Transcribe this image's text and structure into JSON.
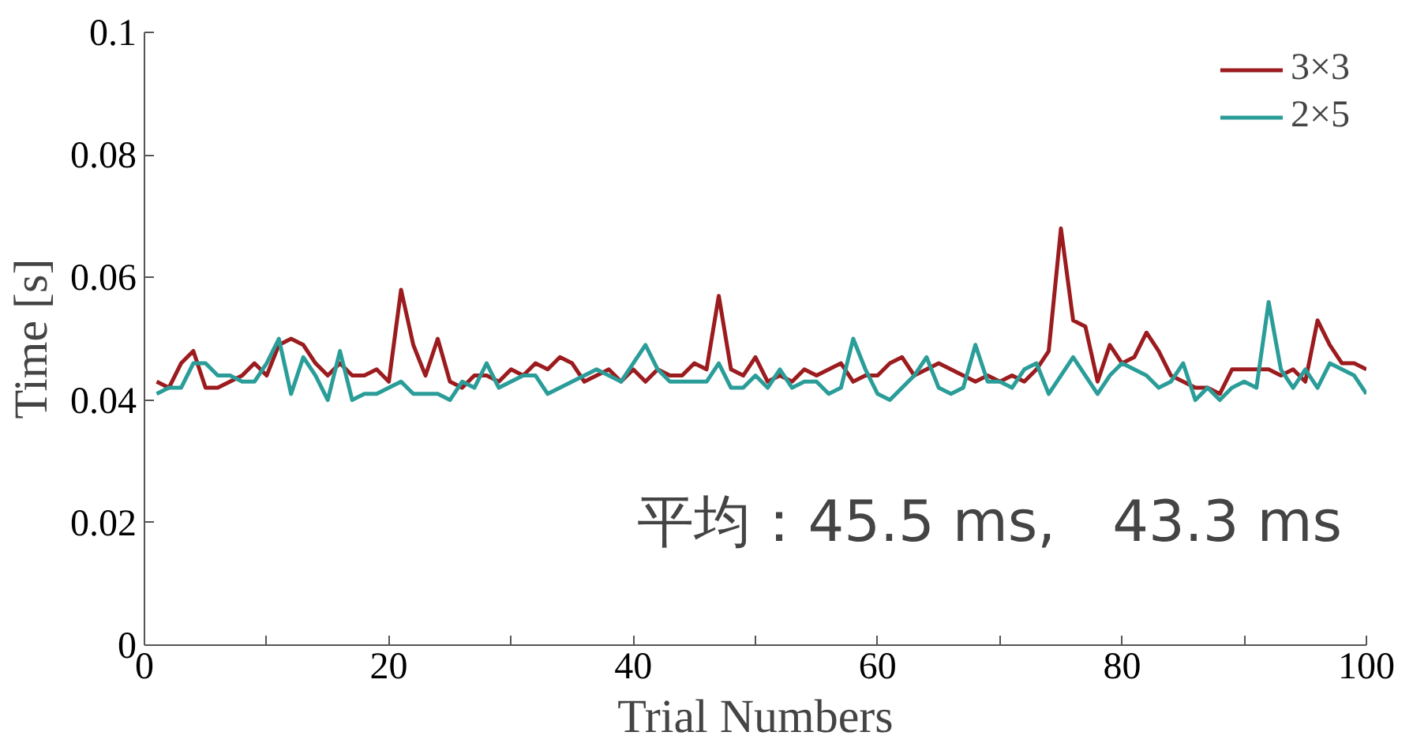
{
  "chart_data": {
    "type": "line",
    "xlabel": "Trial Numbers",
    "ylabel": "Time [s]",
    "x": [
      1,
      2,
      3,
      4,
      5,
      6,
      7,
      8,
      9,
      10,
      11,
      12,
      13,
      14,
      15,
      16,
      17,
      18,
      19,
      20,
      21,
      22,
      23,
      24,
      25,
      26,
      27,
      28,
      29,
      30,
      31,
      32,
      33,
      34,
      35,
      36,
      37,
      38,
      39,
      40,
      41,
      42,
      43,
      44,
      45,
      46,
      47,
      48,
      49,
      50,
      51,
      52,
      53,
      54,
      55,
      56,
      57,
      58,
      59,
      60,
      61,
      62,
      63,
      64,
      65,
      66,
      67,
      68,
      69,
      70,
      71,
      72,
      73,
      74,
      75,
      76,
      77,
      78,
      79,
      80,
      81,
      82,
      83,
      84,
      85,
      86,
      87,
      88,
      89,
      90,
      91,
      92,
      93,
      94,
      95,
      96,
      97,
      98,
      99,
      100
    ],
    "series": [
      {
        "name": "3×3",
        "color": "#9b1b1e",
        "values": [
          0.043,
          0.042,
          0.046,
          0.048,
          0.042,
          0.042,
          0.043,
          0.044,
          0.046,
          0.044,
          0.049,
          0.05,
          0.049,
          0.046,
          0.044,
          0.046,
          0.044,
          0.044,
          0.045,
          0.043,
          0.058,
          0.049,
          0.044,
          0.05,
          0.043,
          0.042,
          0.044,
          0.044,
          0.043,
          0.045,
          0.044,
          0.046,
          0.045,
          0.047,
          0.046,
          0.043,
          0.044,
          0.045,
          0.043,
          0.045,
          0.043,
          0.045,
          0.044,
          0.044,
          0.046,
          0.045,
          0.057,
          0.045,
          0.044,
          0.047,
          0.043,
          0.044,
          0.043,
          0.045,
          0.044,
          0.045,
          0.046,
          0.043,
          0.044,
          0.044,
          0.046,
          0.047,
          0.044,
          0.045,
          0.046,
          0.045,
          0.044,
          0.043,
          0.044,
          0.043,
          0.044,
          0.043,
          0.045,
          0.048,
          0.068,
          0.053,
          0.052,
          0.043,
          0.049,
          0.046,
          0.047,
          0.051,
          0.048,
          0.044,
          0.043,
          0.042,
          0.042,
          0.041,
          0.045,
          0.045,
          0.045,
          0.045,
          0.044,
          0.045,
          0.043,
          0.053,
          0.049,
          0.046,
          0.046,
          0.045
        ]
      },
      {
        "name": "2×5",
        "color": "#2a9d99",
        "values": [
          0.041,
          0.042,
          0.042,
          0.046,
          0.046,
          0.044,
          0.044,
          0.043,
          0.043,
          0.046,
          0.05,
          0.041,
          0.047,
          0.044,
          0.04,
          0.048,
          0.04,
          0.041,
          0.041,
          0.042,
          0.043,
          0.041,
          0.041,
          0.041,
          0.04,
          0.043,
          0.042,
          0.046,
          0.042,
          0.043,
          0.044,
          0.044,
          0.041,
          0.042,
          0.043,
          0.044,
          0.045,
          0.044,
          0.043,
          0.046,
          0.049,
          0.045,
          0.043,
          0.043,
          0.043,
          0.043,
          0.046,
          0.042,
          0.042,
          0.044,
          0.042,
          0.045,
          0.042,
          0.043,
          0.043,
          0.041,
          0.042,
          0.05,
          0.045,
          0.041,
          0.04,
          0.042,
          0.044,
          0.047,
          0.042,
          0.041,
          0.042,
          0.049,
          0.043,
          0.043,
          0.042,
          0.045,
          0.046,
          0.041,
          0.044,
          0.047,
          0.044,
          0.041,
          0.044,
          0.046,
          0.045,
          0.044,
          0.042,
          0.043,
          0.046,
          0.04,
          0.042,
          0.04,
          0.042,
          0.043,
          0.042,
          0.056,
          0.045,
          0.042,
          0.045,
          0.042,
          0.046,
          0.045,
          0.044,
          0.041
        ]
      }
    ],
    "xlim": [
      0,
      100
    ],
    "ylim": [
      0,
      0.1
    ],
    "xticks": [
      0,
      {
        "value": 10,
        "label": null
      },
      20,
      {
        "value": 30,
        "label": null
      },
      40,
      {
        "value": 50,
        "label": null
      },
      60,
      {
        "value": 70,
        "label": null
      },
      80,
      {
        "value": 90,
        "label": null
      },
      100
    ],
    "yticks": [
      0,
      0.02,
      0.04,
      0.06,
      0.08,
      0.1
    ],
    "annotations": [
      "平均：45.5 ms,　43.3 ms"
    ],
    "legend": "top right",
    "grid": false,
    "line_style": "solid",
    "marker": "none"
  }
}
